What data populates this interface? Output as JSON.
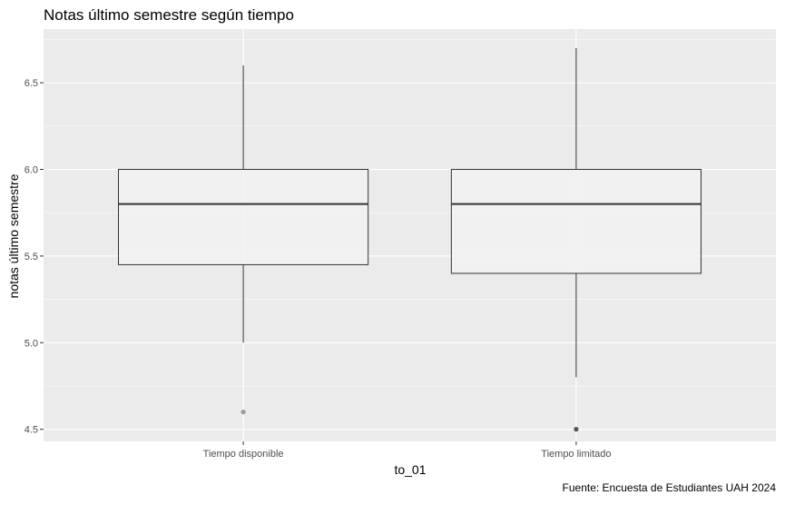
{
  "chart_data": {
    "type": "boxplot",
    "title": "Notas último semestre según tiempo",
    "xlabel": "to_01",
    "ylabel": "notas último semestre",
    "caption": "Fuente: Encuesta de Estudiantes UAH 2024",
    "ylim": [
      4.43,
      6.81
    ],
    "yticks": [
      4.5,
      5.0,
      5.5,
      6.0,
      6.5
    ],
    "ytick_labels": [
      "4.5",
      "5.0",
      "5.5",
      "6.0",
      "6.5"
    ],
    "grid": true,
    "categories": [
      "Tiempo disponible",
      "Tiempo limitado"
    ],
    "boxes": [
      {
        "category": "Tiempo disponible",
        "whisker_low": 5.0,
        "q1": 5.45,
        "median": 5.8,
        "q3": 6.0,
        "whisker_high": 6.6,
        "outliers": [
          4.6
        ]
      },
      {
        "category": "Tiempo limitado",
        "whisker_low": 4.8,
        "q1": 5.4,
        "median": 5.8,
        "q3": 6.0,
        "whisker_high": 6.7,
        "outliers": [
          4.5
        ]
      }
    ],
    "colors": {
      "panel_background": "#ebebeb",
      "grid_major": "#ffffff",
      "grid_minor": "#f5f5f5",
      "box_fill": "#f2f2f2",
      "box_stroke": "#333333",
      "outlier_light": "#9a9a9a",
      "outlier_dark": "#555555",
      "tick_text": "#4d4d4d",
      "text": "#000000"
    }
  }
}
